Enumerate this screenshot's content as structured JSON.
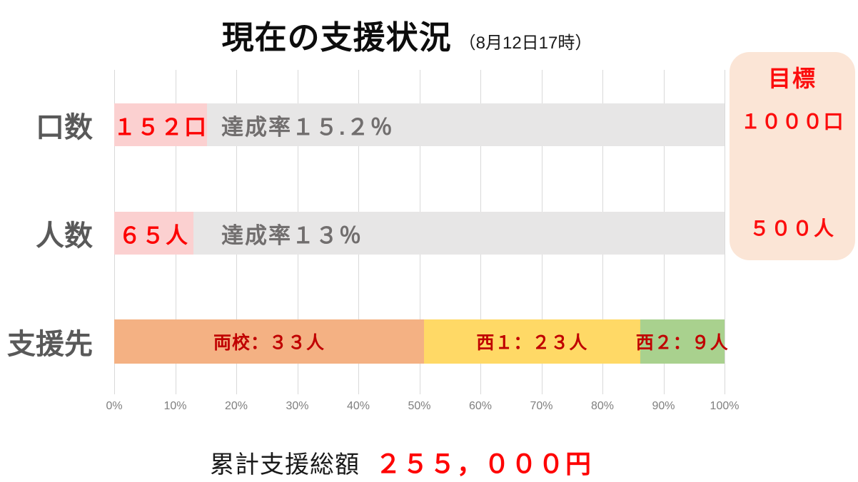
{
  "title": {
    "main": "現在の支援状況",
    "sub": "（8月12日17時）"
  },
  "axis": {
    "ticks": [
      "0%",
      "10%",
      "20%",
      "30%",
      "40%",
      "50%",
      "60%",
      "70%",
      "80%",
      "90%",
      "100%"
    ]
  },
  "rows": [
    {
      "label": "口数",
      "pct": 15.2,
      "value_label": "１５２口",
      "rate_label": "達成率１５.２％"
    },
    {
      "label": "人数",
      "pct": 13,
      "value_label": "６５人",
      "rate_label": "達成率１３％"
    },
    {
      "label": "支援先",
      "segments": [
        {
          "label": "両校：３３人",
          "value": 33,
          "color": "#f4b183"
        },
        {
          "label": "西１：２３人",
          "value": 23,
          "color": "#ffd966"
        },
        {
          "label": "西２：９人",
          "value": 9,
          "color": "#a9d18e"
        }
      ]
    }
  ],
  "target_box": {
    "heading": "目標",
    "units_goal": "１０００口",
    "people_goal": "５００人"
  },
  "footer": {
    "label": "累計支援総額",
    "amount": "２５５，０００円"
  },
  "colors": {
    "track_gray": "#e7e6e6",
    "progress_pink": "#fbd0d0",
    "bright_red": "#fd0202",
    "dark_red": "#c00000",
    "orange": "#f4b183",
    "yellow": "#ffd966",
    "green": "#a9d18e",
    "peach_box": "#fbe5d6",
    "gridline": "#d9d9d9",
    "label_gray": "#595959",
    "axis_gray": "#7f7f7f"
  },
  "chart_data": {
    "type": "bar",
    "orientation": "horizontal",
    "title": "現在の支援状況（8月12日17時）",
    "xlabel": "",
    "ylabel": "",
    "x_axis": {
      "unit": "%",
      "range": [
        0,
        100
      ],
      "tick_step": 10,
      "gridlines": true
    },
    "legend": "none",
    "rows": [
      {
        "category": "口数",
        "current": 152,
        "goal": 1000,
        "achievement_pct": 15.2,
        "bar_text": "１５２口",
        "remainder_text": "達成率１５.２％"
      },
      {
        "category": "人数",
        "current": 65,
        "goal": 500,
        "achievement_pct": 13,
        "bar_text": "６５人",
        "remainder_text": "達成率１３％"
      },
      {
        "category": "支援先",
        "stacked": true,
        "segments": [
          {
            "name": "両校",
            "people": 33,
            "pct_of_bar": 50.8
          },
          {
            "name": "西1",
            "people": 23,
            "pct_of_bar": 35.4
          },
          {
            "name": "西2",
            "people": 9,
            "pct_of_bar": 13.8
          }
        ]
      }
    ],
    "annotations": {
      "goal_box": {
        "heading": "目標",
        "units": "１０００口",
        "people": "５００人"
      },
      "total": {
        "label": "累計支援総額",
        "amount_jpy": 255000
      }
    }
  }
}
